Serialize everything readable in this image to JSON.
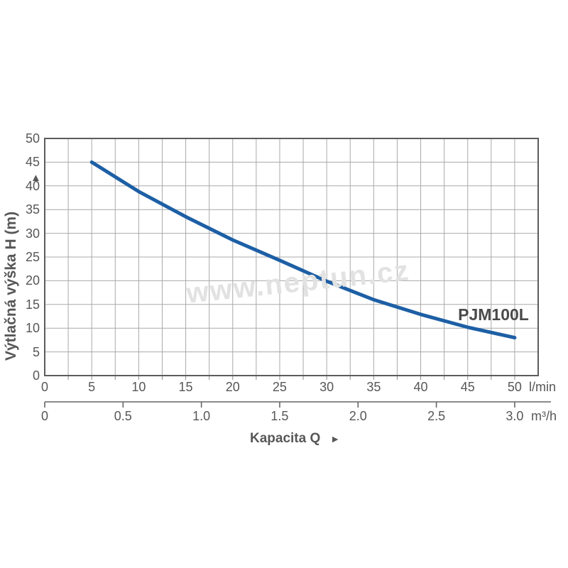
{
  "figure": {
    "watermark": "www.neptun.cz",
    "series_label": "PJM100L"
  },
  "labels": {
    "x_title": "Kapacita Q",
    "x_title_arrow": "►",
    "y_title": "Výtlačná výška H (m)",
    "y_title_arrow": "▲",
    "unit_primary": "l/min",
    "unit_secondary": "m³/h"
  },
  "chart_data": {
    "type": "line",
    "title": "",
    "series": [
      {
        "name": "PJM100L",
        "points_lmin_vs_m": [
          [
            5,
            45
          ],
          [
            10,
            38.8
          ],
          [
            15,
            33.5
          ],
          [
            20,
            28.6
          ],
          [
            25,
            24.3
          ],
          [
            30,
            19.9
          ],
          [
            35,
            16.0
          ],
          [
            40,
            12.9
          ],
          [
            45,
            10.2
          ],
          [
            50,
            8.0
          ]
        ]
      }
    ],
    "x_axis_primary": {
      "label": "Kapacita Q",
      "unit": "l/min",
      "ticks": [
        0,
        5,
        10,
        15,
        20,
        25,
        30,
        35,
        40,
        45,
        50
      ],
      "range": [
        0,
        52.5
      ],
      "gridline_step": 2.5
    },
    "x_axis_secondary": {
      "unit": "m³/h",
      "ticks": [
        "0",
        "0.5",
        "1.0",
        "1.5",
        "2.0",
        "2.5",
        "3.0"
      ],
      "range_m3h": [
        0,
        3.0
      ],
      "lmin_per_m3h": 16.6667
    },
    "y_axis": {
      "label": "Výtlačná výška H (m)",
      "unit": "m",
      "ticks": [
        0,
        5,
        10,
        15,
        20,
        25,
        30,
        35,
        40,
        45,
        50
      ],
      "range": [
        0,
        50
      ],
      "gridline_step": 5
    },
    "grid": true,
    "legend": "none"
  },
  "colors": {
    "background": "#ffffff",
    "curve": "#1d5fa5",
    "grid": "#a9a9a9",
    "border": "#5c5c5c",
    "tick_stub": "#8a8a8a",
    "axis_secondary": "#666666",
    "text": "#575757",
    "watermark": "#e2e2e2"
  }
}
